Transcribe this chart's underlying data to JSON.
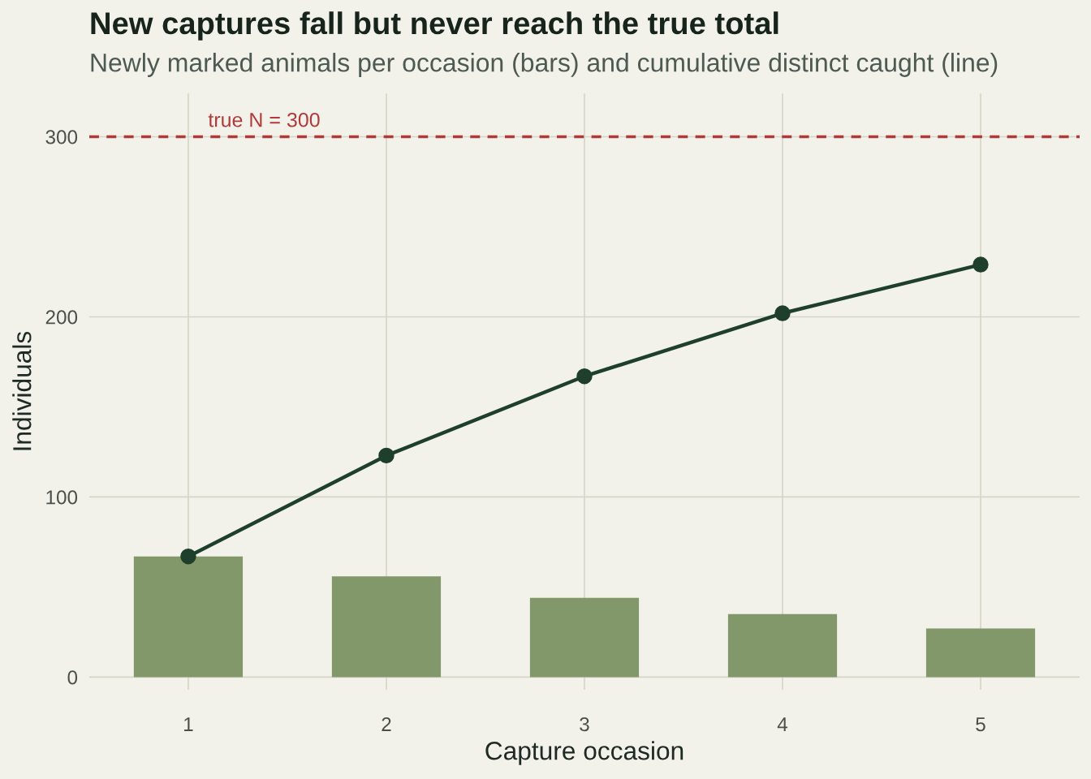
{
  "chart_data": {
    "type": "bar",
    "title": "New captures fall but never reach the true total",
    "subtitle": "Newly marked animals per occasion (bars) and cumulative distinct caught (line)",
    "xlabel": "Capture occasion",
    "ylabel": "Individuals",
    "categories": [
      "1",
      "2",
      "3",
      "4",
      "5"
    ],
    "series": [
      {
        "color": "#82986a",
        "values": [
          67,
          56,
          44,
          35,
          27
        ]
      },
      {
        "type": "line",
        "color": "#1e3f2b",
        "values": [
          67,
          123,
          167,
          202,
          229
        ]
      }
    ],
    "ylim": [
      -7,
      324
    ],
    "yticks": [
      0,
      100,
      200,
      300
    ],
    "grid": true,
    "marker": "circle",
    "line_style": "solid",
    "ref_lines": [
      {
        "axis": "y",
        "value": 300,
        "label": "true N = 300",
        "color": "#b03a3a",
        "line_style": "dashed"
      }
    ]
  }
}
